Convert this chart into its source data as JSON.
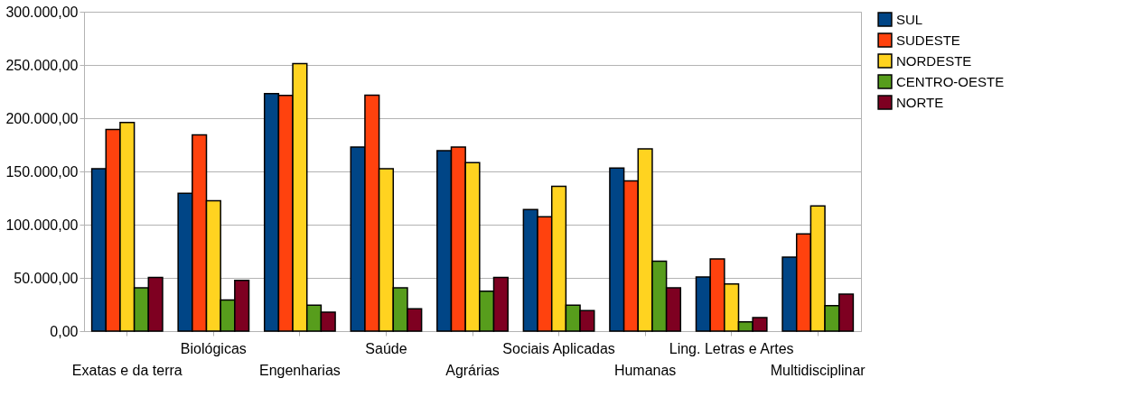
{
  "chart_data": {
    "type": "bar",
    "categories": [
      "Exatas e da terra",
      "Biológicas",
      "Engenharias",
      "Saúde",
      "Agrárias",
      "Sociais Aplicadas",
      "Humanas",
      "Ling. Letras e Artes",
      "Multidisciplinar"
    ],
    "series": [
      {
        "name": "SUL",
        "color": "#004586",
        "values": [
          152500,
          129400,
          223000,
          172800,
          169400,
          114200,
          153100,
          50800,
          69400
        ]
      },
      {
        "name": "SUDESTE",
        "color": "#ff420e",
        "values": [
          189500,
          184400,
          221400,
          221600,
          172800,
          107400,
          141000,
          67700,
          91400
        ]
      },
      {
        "name": "NORDESTE",
        "color": "#ffd320",
        "values": [
          196000,
          122400,
          251300,
          152500,
          158200,
          136000,
          171100,
          44200,
          117600
        ]
      },
      {
        "name": "CENTRO-OESTE",
        "color": "#579d1c",
        "values": [
          40600,
          29300,
          24300,
          40600,
          37500,
          24300,
          65700,
          8700,
          24000
        ]
      },
      {
        "name": "NORTE",
        "color": "#7e0021",
        "values": [
          50500,
          47600,
          17800,
          20900,
          50500,
          19200,
          40600,
          12700,
          34700
        ]
      }
    ],
    "ylim": [
      0,
      300000
    ],
    "yticks": [
      {
        "value": 0,
        "label": "0,00"
      },
      {
        "value": 50000,
        "label": "50.000,00"
      },
      {
        "value": 100000,
        "label": "100.000,00"
      },
      {
        "value": 150000,
        "label": "150.000,00"
      },
      {
        "value": 200000,
        "label": "200.000,00"
      },
      {
        "value": 250000,
        "label": "250.000,00"
      },
      {
        "value": 300000,
        "label": "300.000,00"
      }
    ],
    "grid": "y",
    "legend": "right"
  }
}
